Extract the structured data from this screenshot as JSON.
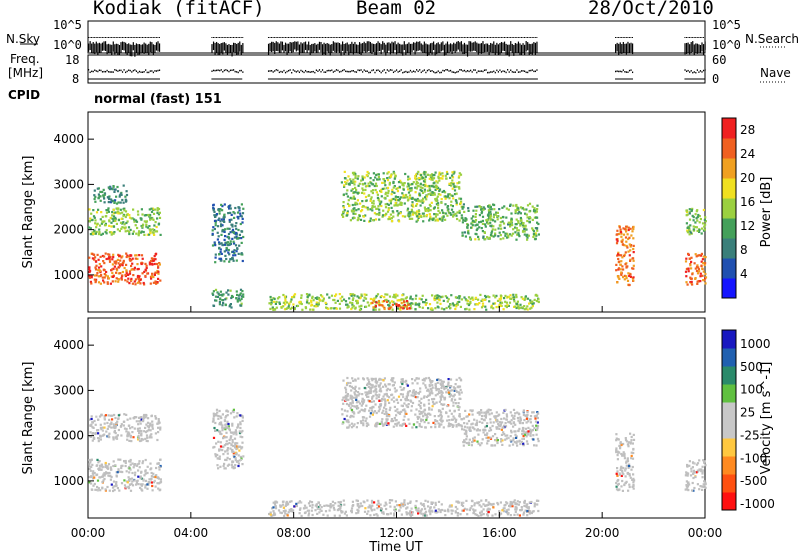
{
  "header": {
    "title": "Kodiak (fitACF)",
    "beam": "Beam 02",
    "date": "28/Oct/2010"
  },
  "left_labels": {
    "nsky": "N.Sky",
    "freq": "Freq.",
    "freq_unit": "[MHz]",
    "cpid": "CPID"
  },
  "right_labels": {
    "nsearch": "N.Search",
    "nave": "Nave"
  },
  "cpid_text": "normal (fast) 151",
  "ticks": {
    "nsky_top": "10^5",
    "nsky_bottom": "10^0",
    "nsearch_top": "10^5",
    "nsearch_bottom": "10^0",
    "freq_top": "18",
    "freq_bottom": "8",
    "nave_top": "60",
    "nave_bottom": "0"
  },
  "colors": {
    "power_scale": [
      "#1515ff",
      "#2050b0",
      "#3a7f7a",
      "#44a05a",
      "#9bd040",
      "#f0e020",
      "#f0a020",
      "#f06020",
      "#f02020"
    ],
    "velocity_scale": [
      "#ff1010",
      "#ff5010",
      "#ff8a20",
      "#ffc840",
      "#c8c8c8",
      "#c8c8c8",
      "#60c040",
      "#2a8a6a",
      "#2060b0",
      "#1818c0"
    ],
    "ground_scatter": "#bfbfbf"
  },
  "chart_data": [
    {
      "type": "heatmap",
      "title": "",
      "xlabel": "Time UT",
      "ylabel": "Slant Range [km]",
      "x_ticks": [
        "00:00",
        "04:00",
        "08:00",
        "12:00",
        "16:00",
        "20:00",
        "00:00"
      ],
      "y_ticks": [
        "1000",
        "2000",
        "3000",
        "4000"
      ],
      "ylim": [
        180,
        4600
      ],
      "xlim_hours": [
        0,
        24
      ],
      "colorbar": {
        "label": "Power [dB]",
        "ticks": [
          "4",
          "8",
          "12",
          "16",
          "20",
          "24",
          "28"
        ],
        "range": [
          0,
          30
        ]
      },
      "regions": [
        {
          "t0": 0.0,
          "t1": 2.8,
          "r0": 800,
          "r1": 1500,
          "value": 27
        },
        {
          "t0": 0.0,
          "t1": 2.8,
          "r0": 1900,
          "r1": 2500,
          "value": 14
        },
        {
          "t0": 0.2,
          "t1": 1.5,
          "r0": 2600,
          "r1": 3000,
          "value": 9
        },
        {
          "t0": 4.8,
          "t1": 6.0,
          "r0": 1300,
          "r1": 2600,
          "value": 7
        },
        {
          "t0": 4.8,
          "t1": 6.0,
          "r0": 300,
          "r1": 700,
          "value": 10
        },
        {
          "t0": 9.8,
          "t1": 14.5,
          "r0": 2200,
          "r1": 3300,
          "value": 14
        },
        {
          "t0": 14.5,
          "t1": 17.5,
          "r0": 1800,
          "r1": 2600,
          "value": 13
        },
        {
          "t0": 7.0,
          "t1": 17.5,
          "r0": 250,
          "r1": 600,
          "value": 15
        },
        {
          "t0": 11.0,
          "t1": 12.5,
          "r0": 250,
          "r1": 450,
          "value": 27
        },
        {
          "t0": 20.5,
          "t1": 21.2,
          "r0": 800,
          "r1": 2100,
          "value": 25
        },
        {
          "t0": 23.2,
          "t1": 24.0,
          "r0": 800,
          "r1": 1500,
          "value": 26
        },
        {
          "t0": 23.2,
          "t1": 24.0,
          "r0": 1900,
          "r1": 2500,
          "value": 13
        }
      ]
    },
    {
      "type": "heatmap",
      "title": "",
      "xlabel": "Time UT",
      "ylabel": "Slant Range [km]",
      "x_ticks": [
        "00:00",
        "04:00",
        "08:00",
        "12:00",
        "16:00",
        "20:00",
        "00:00"
      ],
      "y_ticks": [
        "1000",
        "2000",
        "3000",
        "4000"
      ],
      "ylim": [
        180,
        4600
      ],
      "xlim_hours": [
        0,
        24
      ],
      "colorbar": {
        "label": "Velocity [m s^-1]",
        "ticks": [
          "1000",
          "500",
          "100",
          "25",
          "-25",
          "-100",
          "-500",
          "-1000"
        ]
      },
      "regions": [
        {
          "t0": 0.0,
          "t1": 2.8,
          "r0": 800,
          "r1": 1500,
          "category": "ground"
        },
        {
          "t0": 0.0,
          "t1": 2.8,
          "r0": 1900,
          "r1": 2500,
          "category": "ground"
        },
        {
          "t0": 4.8,
          "t1": 6.0,
          "r0": 1300,
          "r1": 2600,
          "category": "ground"
        },
        {
          "t0": 9.8,
          "t1": 14.5,
          "r0": 2200,
          "r1": 3300,
          "category": "ground"
        },
        {
          "t0": 14.5,
          "t1": 17.5,
          "r0": 1800,
          "r1": 2600,
          "category": "ground"
        },
        {
          "t0": 7.0,
          "t1": 17.5,
          "r0": 250,
          "r1": 600,
          "category": "ground"
        },
        {
          "t0": 20.5,
          "t1": 21.2,
          "r0": 800,
          "r1": 2100,
          "category": "ground"
        },
        {
          "t0": 23.2,
          "t1": 24.0,
          "r0": 800,
          "r1": 1500,
          "category": "ground"
        }
      ]
    }
  ]
}
